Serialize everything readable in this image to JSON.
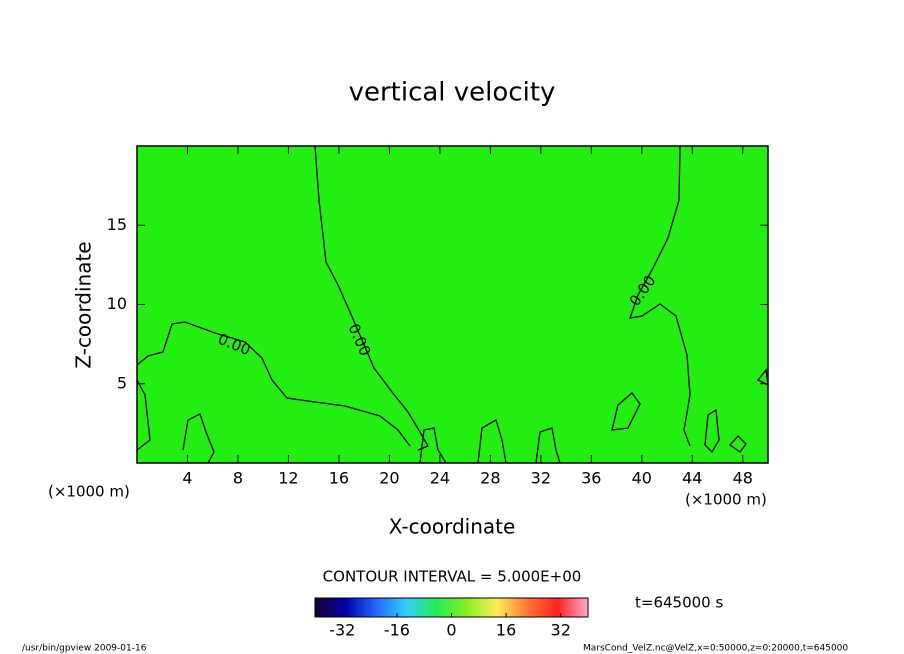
{
  "chart_data": {
    "type": "contour",
    "title": "vertical velocity",
    "xlabel": "X-coordinate",
    "ylabel": "Z-coordinate",
    "x_unit_left": "(×1000 m)",
    "x_unit_right": "(×1000 m)",
    "xlim": [
      0,
      50
    ],
    "xticks": [
      4,
      8,
      12,
      16,
      20,
      24,
      28,
      32,
      36,
      40,
      44,
      48
    ],
    "ylim": [
      0,
      20
    ],
    "yticks": [
      5,
      10,
      15
    ],
    "fill_color": "#22ee11",
    "contour_labels": [
      "0.00",
      "0.00",
      "0.00"
    ],
    "contour_interval": "CONTOUR INTERVAL = 5.000E+00",
    "time_label": "t=645000 s",
    "colorbar": {
      "lim": [
        -40,
        40
      ],
      "ticks": [
        -32,
        -16,
        0,
        16,
        32
      ],
      "colors": [
        "#1a0033",
        "#0000aa",
        "#2266ff",
        "#33ccff",
        "#22ee55",
        "#88ee22",
        "#ffee55",
        "#ff7733",
        "#ff2222",
        "#ffaacc"
      ]
    },
    "footer_left": "/usr/bin/gpview  2009-01-16",
    "footer_right": "MarsCond_VelZ.nc@VelZ,x=0:50000,z=0:20000,t=645000"
  }
}
